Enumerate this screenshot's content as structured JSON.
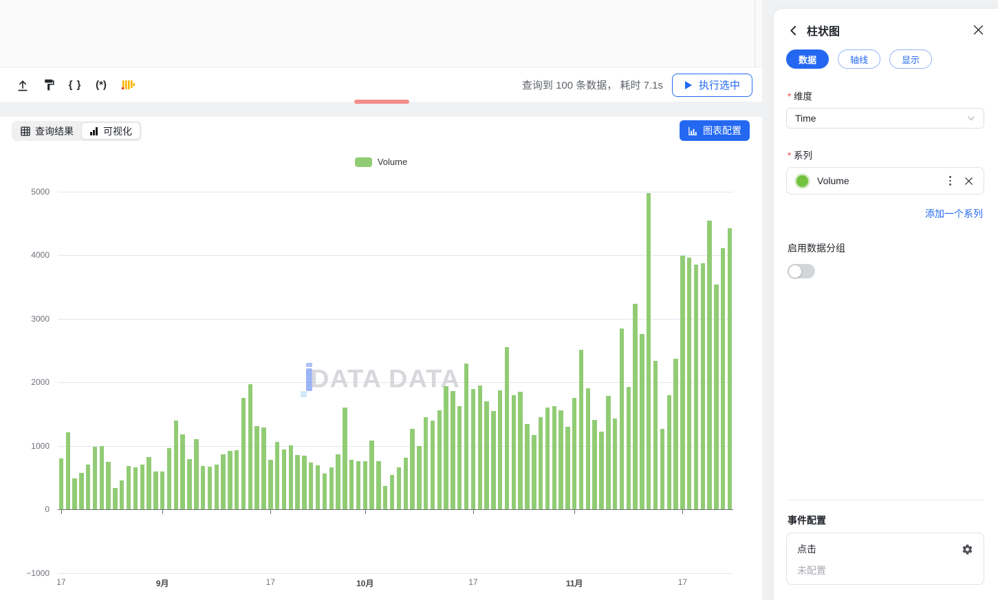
{
  "colors": {
    "accent_blue": "#2468F2",
    "bar_green": "#91CC75",
    "series_marker_green": "#73C341",
    "drag_handle_red": "#F28C8C",
    "required_red": "#F54A45"
  },
  "toolbar": {
    "icons": [
      "upload-icon",
      "paint-roller-icon",
      "braces-icon",
      "regex-icon",
      "histogram-icon"
    ],
    "braces_glyph": "{ }",
    "regex_glyph": "(*)",
    "result_text": "查询到 100 条数据， 耗时 7.1s",
    "execute_button_label": "执行选中"
  },
  "view_tabs": {
    "query_result": "查询结果",
    "visualization": "可视化",
    "active": "可视化"
  },
  "chart_config_button_label": "图表配置",
  "watermark_text": "DATA DATA",
  "chart_data": {
    "type": "bar",
    "legend": [
      {
        "label": "Volume",
        "color": "#91CC75"
      }
    ],
    "grid": true,
    "x_axis": {
      "kind": "time",
      "ticks": [
        {
          "label": "17",
          "bar_index": 0,
          "bold": false
        },
        {
          "label": "9月",
          "bar_index": 15,
          "bold": true
        },
        {
          "label": "17",
          "bar_index": 31,
          "bold": false
        },
        {
          "label": "10月",
          "bar_index": 45,
          "bold": true
        },
        {
          "label": "17",
          "bar_index": 61,
          "bold": false
        },
        {
          "label": "11月",
          "bar_index": 76,
          "bold": true
        },
        {
          "label": "17",
          "bar_index": 92,
          "bold": false
        }
      ]
    },
    "y_axis": {
      "min": -1000,
      "max": 5000,
      "interval": 1000,
      "ticks": [
        {
          "value": 5000,
          "label": "5000"
        },
        {
          "value": 4000,
          "label": "4000"
        },
        {
          "value": 3000,
          "label": "3000"
        },
        {
          "value": 2000,
          "label": "2000"
        },
        {
          "value": 1000,
          "label": "1000"
        },
        {
          "value": 0,
          "label": "0"
        },
        {
          "value": -1000,
          "label": "−1000"
        }
      ]
    },
    "series": [
      {
        "name": "Volume",
        "color": "#91CC75",
        "values": [
          800,
          1210,
          490,
          575,
          700,
          980,
          1000,
          745,
          330,
          455,
          680,
          660,
          700,
          820,
          600,
          600,
          960,
          1390,
          1180,
          790,
          1100,
          680,
          670,
          700,
          870,
          920,
          930,
          1750,
          1970,
          1310,
          1290,
          780,
          1060,
          940,
          1010,
          850,
          840,
          730,
          690,
          560,
          660,
          860,
          1600,
          780,
          760,
          760,
          1080,
          760,
          370,
          540,
          660,
          810,
          1260,
          990,
          1450,
          1400,
          1560,
          1930,
          1860,
          1620,
          2290,
          1890,
          1950,
          1700,
          1550,
          1870,
          2550,
          1800,
          1850,
          1340,
          1170,
          1450,
          1600,
          1620,
          1560,
          1300,
          1750,
          2510,
          1900,
          1410,
          1220,
          1780,
          1430,
          2840,
          1920,
          3230,
          2760,
          4970,
          2330,
          1270,
          1790,
          2370,
          3990,
          3960,
          3850,
          3870,
          4540,
          3540,
          4110,
          4420
        ]
      }
    ]
  },
  "panel": {
    "title": "柱状图",
    "tabs": [
      {
        "label": "数据",
        "active": true
      },
      {
        "label": "轴线",
        "active": false
      },
      {
        "label": "显示",
        "active": false
      }
    ],
    "dimension": {
      "label": "维度",
      "required": true,
      "value": "Time"
    },
    "series": {
      "label": "系列",
      "required": true,
      "items": [
        {
          "name": "Volume",
          "marker_color": "#73C341"
        }
      ],
      "add_link": "添加一个系列"
    },
    "grouping": {
      "label": "启用数据分组",
      "enabled": false
    },
    "events": {
      "title": "事件配置",
      "event_name": "点击",
      "status": "未配置"
    }
  }
}
